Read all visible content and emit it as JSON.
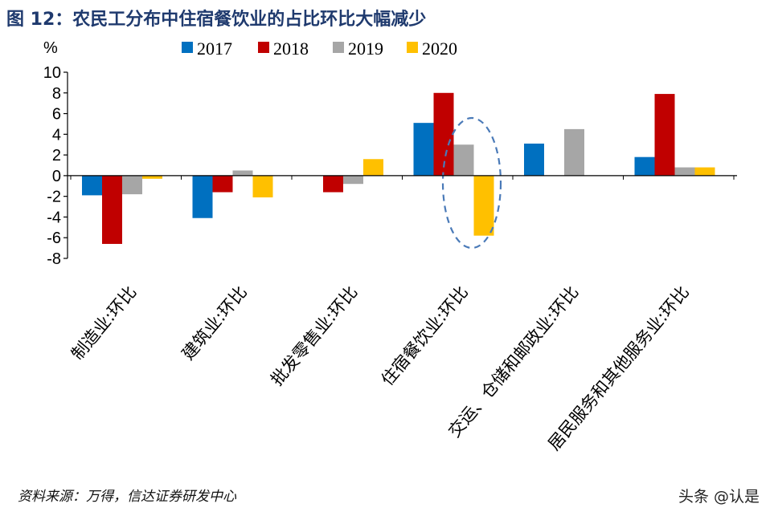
{
  "title": "图 12：农民工分布中住宿餐饮业的占比环比大幅减少",
  "source": "资料来源：万得，信达证券研发中心",
  "watermark": "头条 @认是",
  "colors": {
    "2017": "#0070c0",
    "2018": "#c00000",
    "2019": "#a6a6a6",
    "2020": "#ffc000",
    "highlight": "#4a7ab8"
  },
  "chart_data": {
    "type": "bar",
    "ylabel": "%",
    "ylim": [
      -8,
      10
    ],
    "yticks": [
      10,
      8,
      6,
      4,
      2,
      0,
      -2,
      -4,
      -6,
      -8
    ],
    "legend_position": "top",
    "categories": [
      "制造业:环比",
      "建筑业:环比",
      "批发零售业:环比",
      "住宿餐饮业:环比",
      "交运、仓储和邮政业:环比",
      "居民服务和其他服务业:环比"
    ],
    "series": [
      {
        "name": "2017",
        "values": [
          -1.9,
          -4.1,
          0,
          5.1,
          3.1,
          1.8
        ]
      },
      {
        "name": "2018",
        "values": [
          -6.6,
          -1.6,
          -1.6,
          8.0,
          0,
          7.9
        ]
      },
      {
        "name": "2019",
        "values": [
          -1.8,
          0.5,
          -0.8,
          3.0,
          4.5,
          0.8
        ]
      },
      {
        "name": "2020",
        "values": [
          -0.3,
          -2.1,
          1.6,
          -5.8,
          0,
          0.8
        ]
      }
    ],
    "highlight": {
      "category": "住宿餐饮业:环比",
      "series": [
        "2019",
        "2020"
      ]
    }
  }
}
